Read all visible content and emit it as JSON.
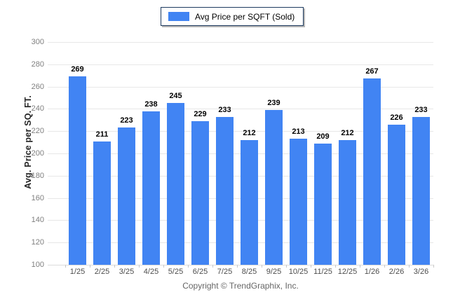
{
  "legend": {
    "label": "Avg Price per SQFT (Sold)"
  },
  "y_axis": {
    "title": "Avg. Price per SQ. FT."
  },
  "footer": {
    "copyright": "Copyright © TrendGraphix, Inc."
  },
  "colors": {
    "bar": "#4184f3",
    "legend_border": "#1d3a5f",
    "gridline": "#e7e7e7",
    "y_label_text": "#7f7f7f",
    "x_label_text": "#4d4d4d"
  },
  "chart_data": {
    "type": "bar",
    "title": "",
    "xlabel": "",
    "ylabel": "Avg. Price per SQ. FT.",
    "categories": [
      "1/25",
      "2/25",
      "3/25",
      "4/25",
      "5/25",
      "6/25",
      "7/25",
      "8/25",
      "9/25",
      "10/25",
      "11/25",
      "12/25",
      "1/26",
      "2/26",
      "3/26"
    ],
    "series": [
      {
        "name": "Avg Price per SQFT (Sold)",
        "values": [
          269,
          211,
          223,
          238,
          245,
          229,
          233,
          212,
          239,
          213,
          209,
          212,
          267,
          226,
          233
        ]
      }
    ],
    "ylim": [
      100,
      300
    ],
    "ytick_step": 20,
    "ytick_labels": [
      "300",
      "280",
      "260",
      "240",
      "220",
      "200",
      "180",
      "160",
      "140",
      "120",
      "100"
    ],
    "grid": true,
    "value_labels": true,
    "legend_position": "top-center"
  }
}
